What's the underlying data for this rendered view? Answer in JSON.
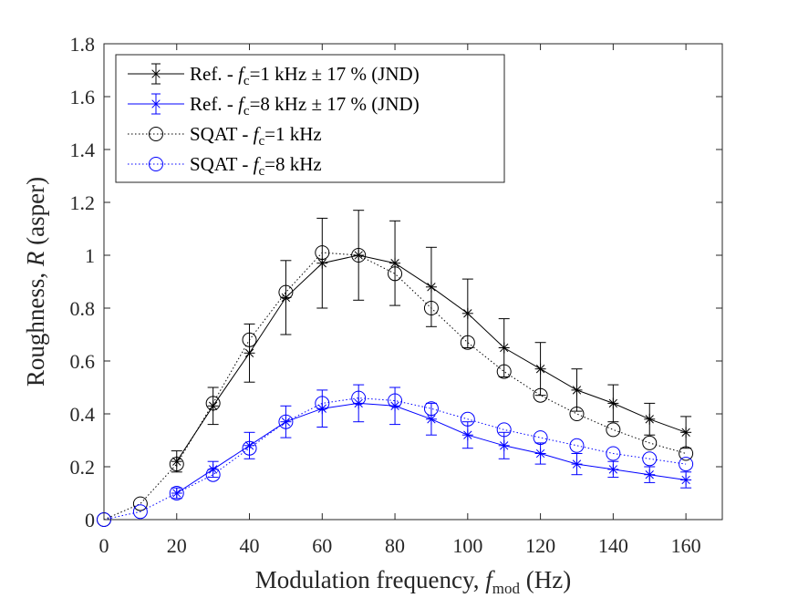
{
  "chart_data": {
    "type": "line",
    "xlabel": "Modulation frequency, ",
    "xlabel_var": "f",
    "xlabel_sub": "mod",
    "xlabel_unit": " (Hz)",
    "ylabel": "Roughness, ",
    "ylabel_var": "R",
    "ylabel_unit": " (asper)",
    "xlim": [
      0,
      170
    ],
    "ylim": [
      0,
      1.8
    ],
    "xticks": [
      0,
      20,
      40,
      60,
      80,
      100,
      120,
      140,
      160
    ],
    "yticks": [
      0,
      0.2,
      0.4,
      0.6,
      0.8,
      1,
      1.2,
      1.4,
      1.6,
      1.8
    ],
    "xtick_labels": [
      "0",
      "20",
      "40",
      "60",
      "80",
      "100",
      "120",
      "140",
      "160"
    ],
    "ytick_labels": [
      "0",
      "0.2",
      "0.4",
      "0.6",
      "0.8",
      "1",
      "1.2",
      "1.4",
      "1.6",
      "1.8"
    ],
    "grid": false,
    "legend_position": "top-left",
    "series": [
      {
        "name": "Ref. - fc=1 kHz ± 17 % (JND)",
        "label_parts": [
          "Ref. - ",
          "f",
          "c",
          "=1 kHz ",
          "±",
          " 17 % (JND)"
        ],
        "color": "#000000",
        "line": "solid",
        "marker": "asterisk",
        "errorbars": true,
        "x": [
          20,
          30,
          40,
          50,
          60,
          70,
          80,
          90,
          100,
          110,
          120,
          130,
          140,
          150,
          160
        ],
        "y": [
          0.22,
          0.43,
          0.63,
          0.84,
          0.97,
          1.0,
          0.97,
          0.88,
          0.78,
          0.65,
          0.57,
          0.49,
          0.44,
          0.38,
          0.33
        ],
        "err": [
          0.04,
          0.07,
          0.11,
          0.14,
          0.17,
          0.17,
          0.16,
          0.15,
          0.13,
          0.11,
          0.1,
          0.08,
          0.07,
          0.06,
          0.06
        ]
      },
      {
        "name": "Ref. - fc=8 kHz ± 17 % (JND)",
        "label_parts": [
          "Ref. - ",
          "f",
          "c",
          "=8 kHz ",
          "±",
          " 17 % (JND)"
        ],
        "color": "#0000ff",
        "line": "solid",
        "marker": "asterisk",
        "errorbars": true,
        "x": [
          20,
          30,
          40,
          50,
          60,
          70,
          80,
          90,
          100,
          110,
          120,
          130,
          140,
          150,
          160
        ],
        "y": [
          0.1,
          0.19,
          0.28,
          0.37,
          0.42,
          0.44,
          0.43,
          0.38,
          0.32,
          0.28,
          0.25,
          0.21,
          0.19,
          0.17,
          0.15
        ],
        "err": [
          0.02,
          0.03,
          0.05,
          0.06,
          0.07,
          0.07,
          0.07,
          0.06,
          0.05,
          0.05,
          0.04,
          0.04,
          0.03,
          0.03,
          0.03
        ]
      },
      {
        "name": "SQAT - fc=1 kHz",
        "label_parts": [
          "SQAT - ",
          "f",
          "c",
          "=1 kHz"
        ],
        "color": "#000000",
        "line": "dotted",
        "marker": "circle",
        "errorbars": false,
        "x": [
          0,
          10,
          20,
          30,
          40,
          50,
          60,
          70,
          80,
          90,
          100,
          110,
          120,
          130,
          140,
          150,
          160
        ],
        "y": [
          0.0,
          0.06,
          0.21,
          0.44,
          0.68,
          0.86,
          1.01,
          1.0,
          0.93,
          0.8,
          0.67,
          0.56,
          0.47,
          0.4,
          0.34,
          0.29,
          0.25
        ]
      },
      {
        "name": "SQAT - fc=8 kHz",
        "label_parts": [
          "SQAT - ",
          "f",
          "c",
          "=8 kHz"
        ],
        "color": "#0000ff",
        "line": "dotted",
        "marker": "circle",
        "errorbars": false,
        "x": [
          0,
          10,
          20,
          30,
          40,
          50,
          60,
          70,
          80,
          90,
          100,
          110,
          120,
          130,
          140,
          150,
          160
        ],
        "y": [
          0.0,
          0.03,
          0.1,
          0.17,
          0.27,
          0.37,
          0.44,
          0.46,
          0.45,
          0.42,
          0.38,
          0.34,
          0.31,
          0.28,
          0.25,
          0.23,
          0.21
        ]
      }
    ]
  }
}
